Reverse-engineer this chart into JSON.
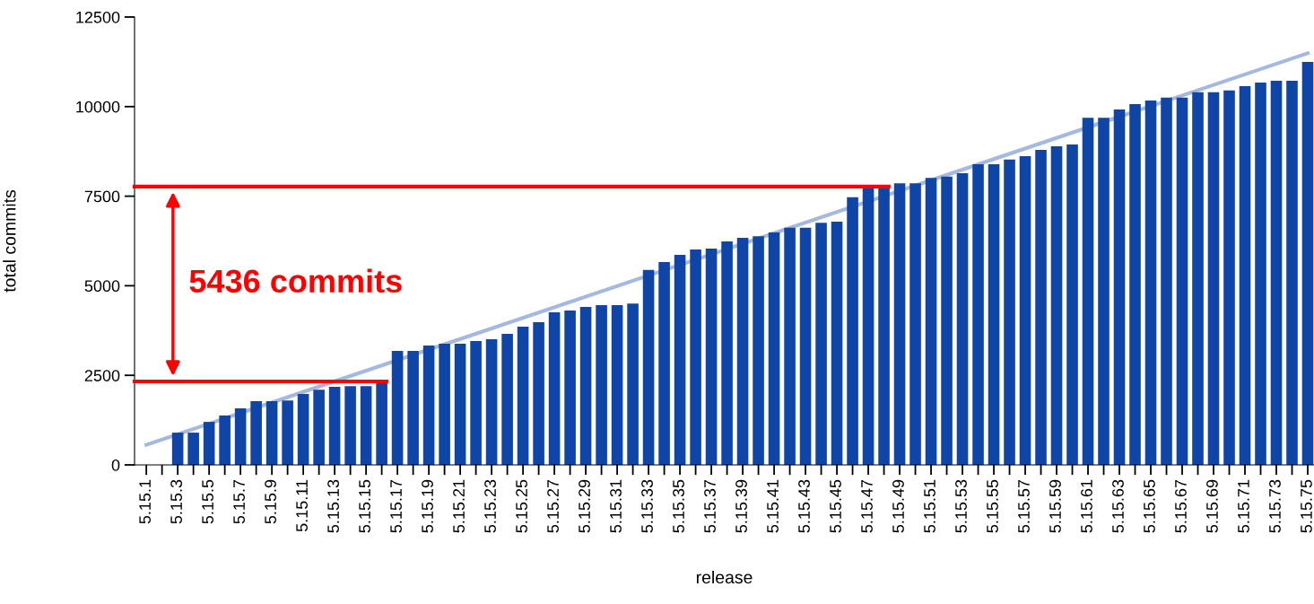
{
  "chart_data": {
    "type": "bar",
    "xlabel": "release",
    "ylabel": "total commits",
    "categories": [
      "5.15.1",
      null,
      "5.15.3",
      null,
      "5.15.5",
      null,
      "5.15.7",
      null,
      "5.15.9",
      null,
      "5.15.11",
      null,
      "5.15.13",
      null,
      "5.15.15",
      null,
      "5.15.17",
      null,
      "5.15.19",
      null,
      "5.15.21",
      null,
      "5.15.23",
      null,
      "5.15.25",
      null,
      "5.15.27",
      null,
      "5.15.29",
      null,
      "5.15.31",
      null,
      "5.15.33",
      null,
      "5.15.35",
      null,
      "5.15.37",
      null,
      "5.15.39",
      null,
      "5.15.41",
      null,
      "5.15.43",
      null,
      "5.15.45",
      null,
      "5.15.47",
      null,
      "5.15.49",
      null,
      "5.15.51",
      null,
      "5.15.53",
      null,
      "5.15.55",
      null,
      "5.15.57",
      null,
      "5.15.59",
      null,
      "5.15.61",
      null,
      "5.15.63",
      null,
      "5.15.65",
      null,
      "5.15.67",
      null,
      "5.15.69",
      null,
      "5.15.71",
      null,
      "5.15.73",
      null,
      "5.15.75"
    ],
    "series": [
      {
        "color": "#1045a8",
        "values": [
          0,
          0,
          900,
          900,
          1200,
          1380,
          1580,
          1780,
          1780,
          1800,
          1980,
          2100,
          2180,
          2200,
          2200,
          2330,
          3180,
          3180,
          3330,
          3380,
          3380,
          3460,
          3510,
          3660,
          3860,
          3980,
          4260,
          4310,
          4410,
          4460,
          4460,
          4500,
          5440,
          5660,
          5860,
          6010,
          6040,
          6240,
          6340,
          6380,
          6490,
          6620,
          6620,
          6760,
          6790,
          7470,
          7770,
          7770,
          7860,
          7860,
          8010,
          8050,
          8140,
          8390,
          8390,
          8520,
          8620,
          8790,
          8890,
          8940,
          9690,
          9690,
          9920,
          10070,
          10170,
          10250,
          10250,
          10400,
          10400,
          10450,
          10570,
          10670,
          10720,
          10720,
          11250
        ]
      },
      {
        "type": "line",
        "color": "#a5b9e0",
        "x": [
          "5.15.1",
          "5.15.75"
        ],
        "values": [
          560,
          11490
        ]
      }
    ],
    "ylim": [
      0,
      12500
    ],
    "yticks": [
      0,
      2500,
      5000,
      7500,
      10000,
      12500
    ],
    "grid": false,
    "legend": false,
    "ref_lines": [
      {
        "axis": "y",
        "value": 2330,
        "color": "#ff0000"
      },
      {
        "axis": "y",
        "value": 7770,
        "color": "#ff0000"
      }
    ],
    "annotations": [
      "5436 commits"
    ]
  }
}
